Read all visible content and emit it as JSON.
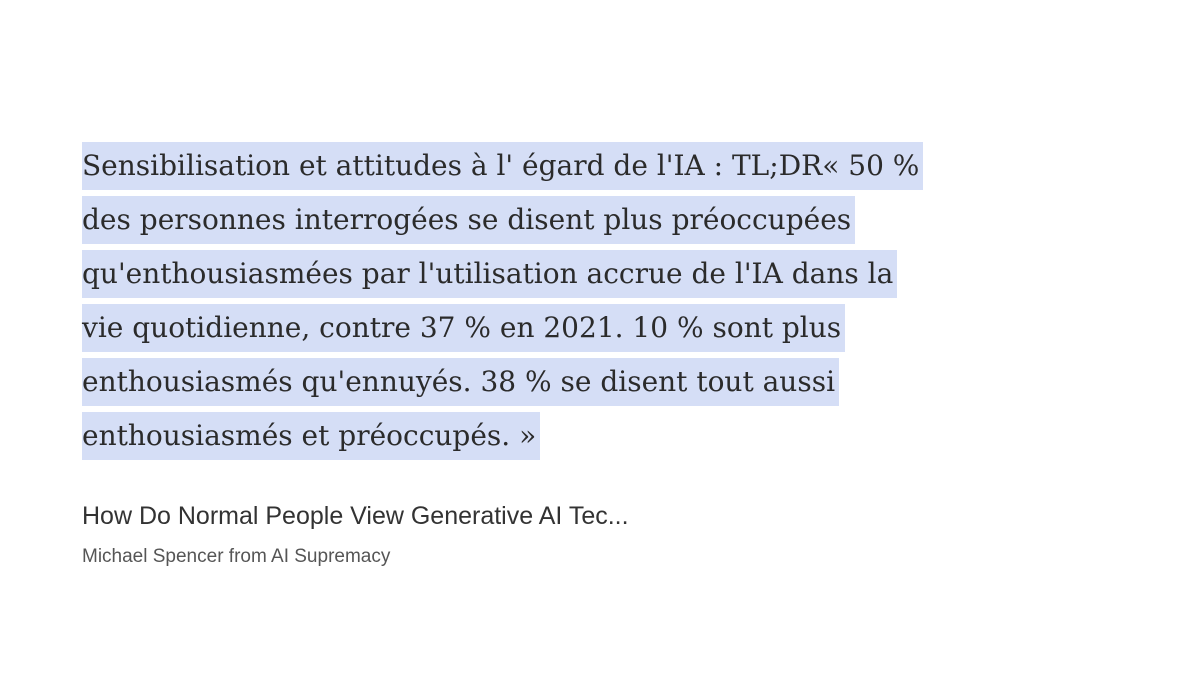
{
  "quote": {
    "lines": [
      "Sensibilisation et attitudes à l' égard de l'IA : TL;DR« 50 %",
      "des personnes interrogées se disent plus préoccupées",
      "qu'enthousiasmées par l'utilisation accrue de l'IA dans la",
      "vie quotidienne, contre 37 % en 2021. 10 % sont plus",
      "enthousiasmés qu'ennuyés. 38 % se disent tout aussi",
      "enthousiasmés et préoccupés. »"
    ]
  },
  "source": {
    "title": "How Do Normal People View Generative AI Tec...",
    "author": "Michael Spencer from AI Supremacy"
  }
}
